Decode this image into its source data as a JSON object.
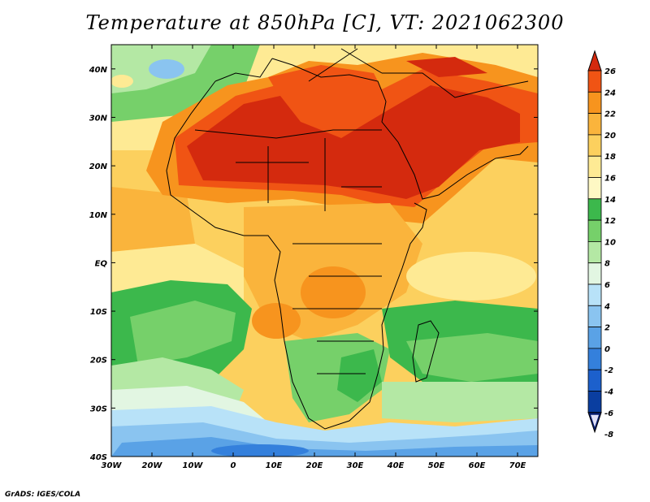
{
  "title": "Temperature at 850hPa [C], VT: 2021062300",
  "credit": "GrADS: IGES/COLA",
  "map": {
    "projection": "lat-lon",
    "lon_range": [
      -30,
      75
    ],
    "lat_range": [
      -40,
      45
    ],
    "lon_ticks": [
      {
        "value": -30,
        "label": "30W"
      },
      {
        "value": -20,
        "label": "20W"
      },
      {
        "value": -10,
        "label": "10W"
      },
      {
        "value": 0,
        "label": "0"
      },
      {
        "value": 10,
        "label": "10E"
      },
      {
        "value": 20,
        "label": "20E"
      },
      {
        "value": 30,
        "label": "30E"
      },
      {
        "value": 40,
        "label": "40E"
      },
      {
        "value": 50,
        "label": "50E"
      },
      {
        "value": 60,
        "label": "60E"
      },
      {
        "value": 70,
        "label": "70E"
      }
    ],
    "lat_ticks": [
      {
        "value": 40,
        "label": "40N"
      },
      {
        "value": 30,
        "label": "30N"
      },
      {
        "value": 20,
        "label": "20N"
      },
      {
        "value": 10,
        "label": "10N"
      },
      {
        "value": 0,
        "label": "EQ"
      },
      {
        "value": -10,
        "label": "10S"
      },
      {
        "value": -20,
        "label": "20S"
      },
      {
        "value": -30,
        "label": "30S"
      },
      {
        "value": -40,
        "label": "40S"
      }
    ]
  },
  "colorbar": {
    "levels": [
      "26",
      "24",
      "22",
      "20",
      "18",
      "16",
      "14",
      "12",
      "10",
      "8",
      "6",
      "4",
      "2",
      "0",
      "-2",
      "-4",
      "-6",
      "-8"
    ],
    "colors": [
      "#d42a0e",
      "#f05414",
      "#f7941e",
      "#fab43c",
      "#fcd05e",
      "#feea94",
      "#fef8c4",
      "#3cb84c",
      "#76d06a",
      "#b4e8a4",
      "#e2f6e2",
      "#b8e2f8",
      "#8ac4f0",
      "#5aa2e6",
      "#3480dc",
      "#1c60cc",
      "#0a3ea0",
      "#061d70"
    ]
  }
}
